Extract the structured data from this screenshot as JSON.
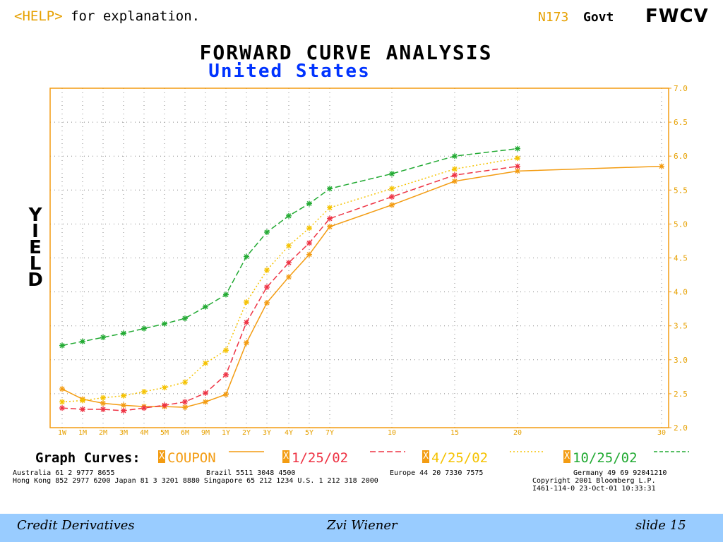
{
  "header": {
    "help_key": "<HELP>",
    "help_text": " for explanation.",
    "code": "N173",
    "sector": "Govt",
    "function": "FWCV"
  },
  "title": "FORWARD CURVE ANALYSIS",
  "subtitle": "United States",
  "legend": {
    "label": "Graph Curves:",
    "box_mark": "X",
    "items": [
      {
        "name": "COUPON",
        "color": "#f39c12"
      },
      {
        "name": "1/25/02",
        "color": "#ee3344"
      },
      {
        "name": "4/25/02",
        "color": "#f5c200"
      },
      {
        "name": "10/25/02",
        "color": "#22aa33"
      }
    ]
  },
  "contacts": {
    "line1a": "Australia 61 2 9777 8655",
    "line1b": "Brazil 5511 3048 4500",
    "line1c": "Europe 44 20 7330 7575",
    "line1d": "Germany 49 69 92041210",
    "line2a": "Hong Kong 852 2977 6200 Japan 81 3 3201 8880 Singapore 65 212 1234 U.S. 1 212 318 2000",
    "line2b": "Copyright 2001 Bloomberg L.P.",
    "line3": "I461-114-0 23-Oct-01 10:33:31"
  },
  "footer": {
    "left": "Credit Derivatives",
    "center": "Zvi Wiener",
    "right": "slide 15"
  },
  "chart_data": {
    "type": "line",
    "title": "FORWARD CURVE ANALYSIS",
    "subtitle": "United States",
    "ylabel": "YIELD",
    "xlabel": "",
    "categories": [
      "1W",
      "1M",
      "2M",
      "3M",
      "4M",
      "5M",
      "6M",
      "9M",
      "1Y",
      "2Y",
      "3Y",
      "4Y",
      "5Y",
      "7Y",
      "10",
      "15",
      "20",
      "30"
    ],
    "ylim": [
      2.0,
      7.0
    ],
    "yticks": [
      "2.0",
      "2.5",
      "3.0",
      "3.5",
      "4.0",
      "4.5",
      "5.0",
      "5.5",
      "6.0",
      "6.5",
      "7.0"
    ],
    "grid": true,
    "legend_position": "bottom",
    "series": [
      {
        "name": "COUPON",
        "color": "#f39c12",
        "style": "solid",
        "values": [
          2.57,
          2.42,
          2.36,
          2.33,
          2.31,
          2.31,
          2.3,
          2.38,
          2.49,
          3.25,
          3.84,
          4.22,
          4.55,
          4.96,
          5.28,
          5.63,
          5.78,
          5.85
        ]
      },
      {
        "name": "1/25/02",
        "color": "#ee3344",
        "style": "dashed",
        "values": [
          2.29,
          2.27,
          2.27,
          2.25,
          2.29,
          2.33,
          2.38,
          2.51,
          2.78,
          3.55,
          4.07,
          4.43,
          4.72,
          5.08,
          5.4,
          5.72,
          5.85,
          null
        ]
      },
      {
        "name": "4/25/02",
        "color": "#f5c200",
        "style": "dotted",
        "values": [
          2.38,
          2.4,
          2.44,
          2.47,
          2.53,
          2.59,
          2.67,
          2.95,
          3.14,
          3.85,
          4.32,
          4.68,
          4.94,
          5.24,
          5.52,
          5.81,
          5.97,
          null
        ]
      },
      {
        "name": "10/25/02",
        "color": "#22aa33",
        "style": "dashed",
        "values": [
          3.21,
          3.27,
          3.33,
          3.39,
          3.46,
          3.53,
          3.61,
          3.78,
          3.96,
          4.52,
          4.88,
          5.12,
          5.3,
          5.52,
          5.74,
          6.0,
          6.11,
          null
        ]
      }
    ]
  }
}
